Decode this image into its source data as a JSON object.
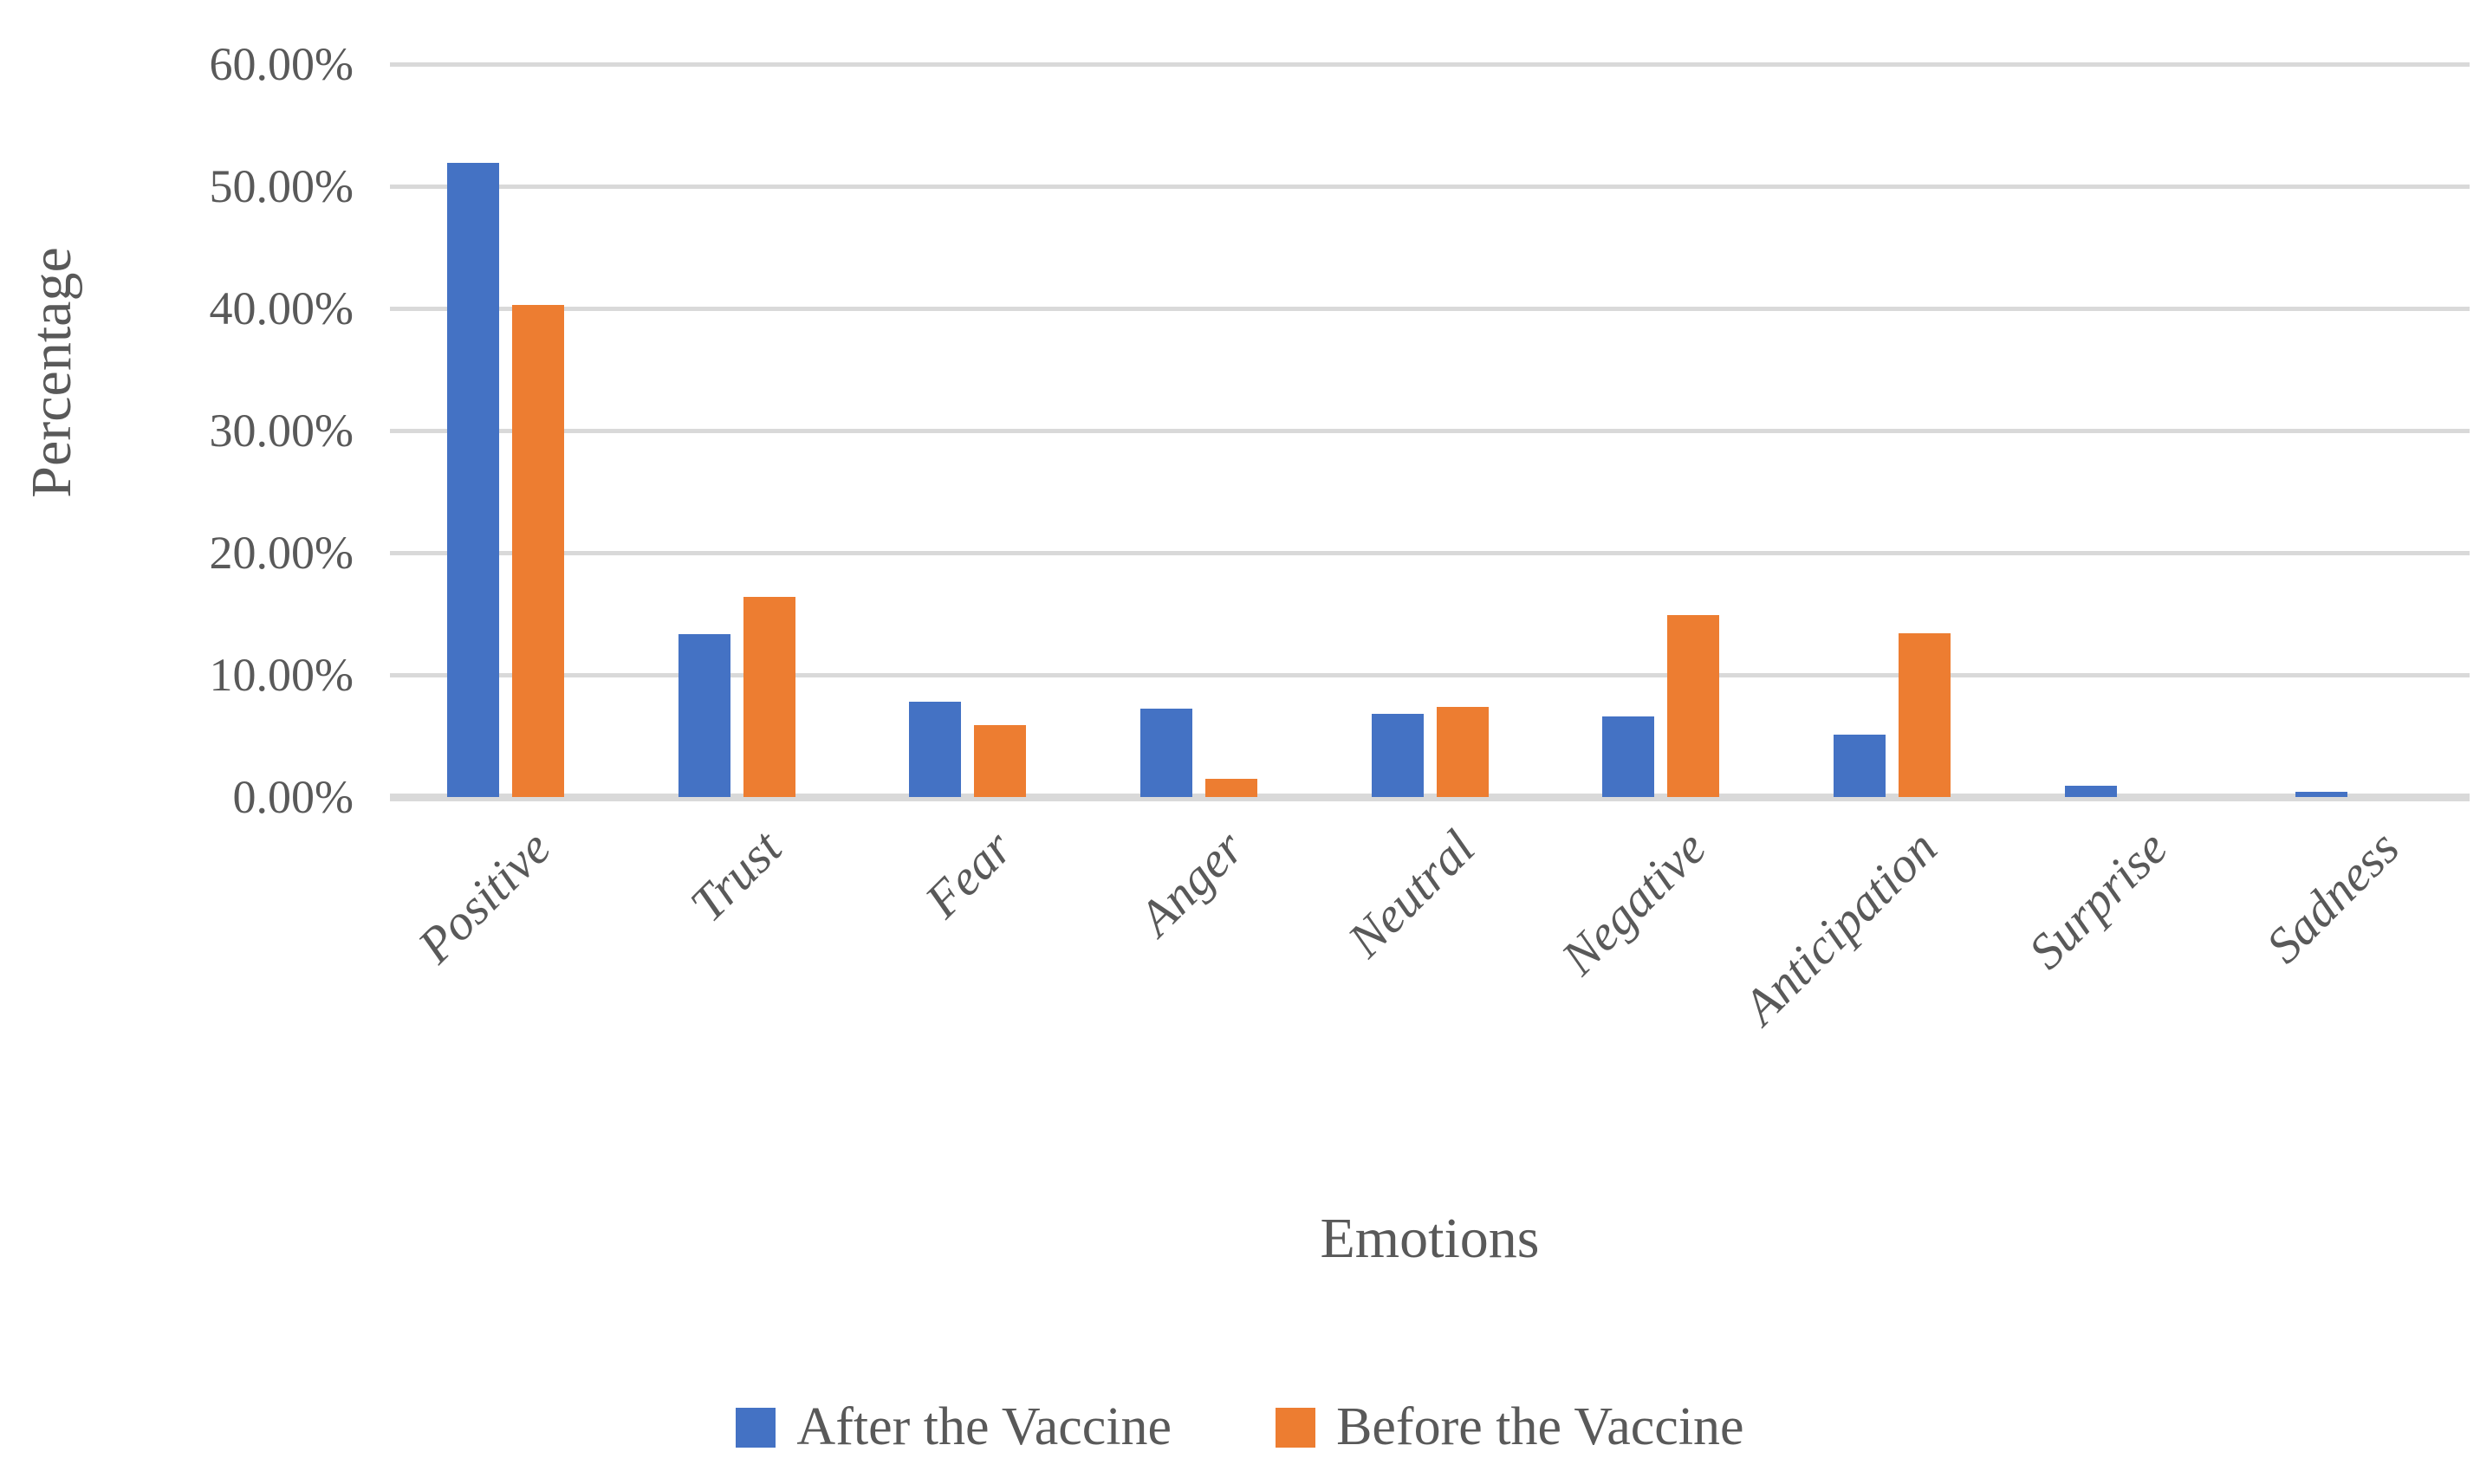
{
  "chart_data": {
    "type": "bar",
    "categories": [
      "Positive",
      "Trust",
      "Fear",
      "Anger",
      "Neutral",
      "Negative",
      "Anticipation",
      "Surprise",
      "Sadness"
    ],
    "series": [
      {
        "name": "After the Vaccine",
        "color": "#4472C4",
        "values": [
          51.9,
          13.3,
          7.8,
          7.2,
          6.8,
          6.6,
          5.1,
          0.9,
          0.4
        ]
      },
      {
        "name": "Before the Vaccine",
        "color": "#ED7D31",
        "values": [
          40.3,
          16.4,
          5.9,
          1.5,
          7.4,
          14.9,
          13.4,
          0,
          0
        ]
      }
    ],
    "title": "",
    "xlabel": "Emotions",
    "ylabel": "Percentage",
    "ylim": [
      0,
      60
    ],
    "ytick_step": 10,
    "yticks": [
      "60.00%",
      "50.00%",
      "40.00%",
      "30.00%",
      "20.00%",
      "10.00%",
      "0.00%"
    ],
    "grid": true,
    "legend_position": "bottom"
  },
  "colors": {
    "series_after": "#4472C4",
    "series_before": "#ED7D31",
    "gridline": "#D9D9D9",
    "axis_line": "#D9D9D9",
    "text": "#595959",
    "background": "#FFFFFF"
  }
}
